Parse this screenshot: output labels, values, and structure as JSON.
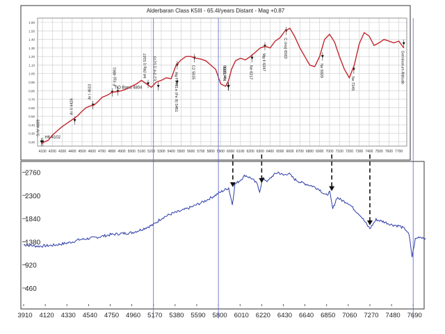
{
  "chart_data": [
    {
      "type": "line",
      "title": "Alderbaran Class K5III - 65.4l/years Distant - Mag +0.87",
      "x": [
        4090,
        4120,
        4160,
        4200,
        4250,
        4300,
        4350,
        4400,
        4450,
        4500,
        4540,
        4580,
        4620,
        4660,
        4700,
        4760,
        4800,
        4860,
        4900,
        4950,
        5000,
        5050,
        5100,
        5150,
        5200,
        5250,
        5300,
        5350,
        5400,
        5450,
        5500,
        5550,
        5600,
        5650,
        5700,
        5750,
        5800,
        5850,
        5900,
        5950,
        5980,
        6010,
        6050,
        6100,
        6150,
        6200,
        6250,
        6300,
        6350,
        6400,
        6450,
        6500,
        6550,
        6600,
        6650,
        6700,
        6750,
        6800,
        6850,
        6900,
        6950,
        7000,
        7050,
        7100,
        7150,
        7200,
        7250,
        7300,
        7350,
        7400,
        7450,
        7500,
        7550,
        7600,
        7650,
        7700,
        7750
      ],
      "y": [
        0.18,
        0.2,
        0.22,
        0.28,
        0.33,
        0.38,
        0.42,
        0.46,
        0.5,
        0.56,
        0.6,
        0.62,
        0.63,
        0.67,
        0.72,
        0.75,
        0.78,
        0.79,
        0.8,
        0.82,
        0.85,
        0.88,
        0.92,
        0.88,
        0.84,
        0.9,
        0.92,
        0.95,
        0.94,
        1.1,
        1.16,
        1.2,
        1.2,
        1.18,
        1.17,
        1.15,
        1.1,
        1.05,
        0.88,
        0.85,
        0.92,
        1.05,
        1.15,
        1.18,
        1.16,
        1.2,
        1.25,
        1.3,
        1.32,
        1.3,
        1.38,
        1.42,
        1.5,
        1.53,
        1.43,
        1.3,
        1.2,
        1.1,
        1.08,
        1.2,
        1.4,
        1.46,
        1.37,
        1.2,
        1.05,
        0.95,
        1.1,
        1.35,
        1.48,
        1.44,
        1.33,
        1.36,
        1.4,
        1.38,
        1.36,
        1.38,
        1.3
      ],
      "xticks": [
        4100,
        4200,
        4300,
        4400,
        4500,
        4600,
        4700,
        4800,
        4900,
        5000,
        5100,
        5200,
        5300,
        5400,
        5500,
        5600,
        5700,
        5800,
        5900,
        6000,
        6100,
        6200,
        6300,
        6400,
        6500,
        6600,
        6700,
        6800,
        6900,
        7000,
        7100,
        7200,
        7300,
        7400,
        7500,
        7600,
        7700
      ],
      "yticks": [
        0.2,
        0.3,
        0.4,
        0.5,
        0.6,
        0.7,
        0.8,
        0.9,
        1.0,
        1.1,
        1.2,
        1.3,
        1.4,
        1.5,
        1.6
      ],
      "xlim": [
        4050,
        7780
      ],
      "ylim": [
        0.15,
        1.65
      ],
      "grid": true,
      "color": "#c0262c",
      "annotations": [
        {
          "text": "S IV 4089",
          "x": 4089,
          "y": 0.2,
          "rotation": "vertical"
        },
        {
          "text": "H6 4102",
          "x": 4102,
          "y": 0.2,
          "rotation": "horizontal"
        },
        {
          "text": "Ar II 4426",
          "x": 4426,
          "y": 0.45,
          "rotation": "vertical"
        },
        {
          "text": "Ar I 4610",
          "x": 4610,
          "y": 0.63,
          "rotation": "vertical"
        },
        {
          "text": "F I(g) 4861",
          "x": 4861,
          "y": 0.79,
          "rotation": "vertical"
        },
        {
          "text": "TiO Band 4804",
          "x": 4804,
          "y": 0.78,
          "rotation": "horizontal"
        },
        {
          "text": "b4 (Mg I) 5167",
          "x": 5167,
          "y": 0.88,
          "rotation": "vertical"
        },
        {
          "text": "E2 (Fe I) 5270",
          "x": 5270,
          "y": 0.85,
          "rotation": "vertical"
        },
        {
          "text": "e (Fe II) 5461",
          "x": 5461,
          "y": 0.9,
          "rotation": "vertical"
        },
        {
          "text": "Hg I 5461",
          "x": 5461,
          "y": 1.1,
          "rotation": "vertical"
        },
        {
          "text": "C2 5635",
          "x": 5635,
          "y": 1.18,
          "rotation": "vertical"
        },
        {
          "text": "Ne 5976",
          "x": 5976,
          "y": 0.85,
          "rotation": "vertical"
        },
        {
          "text": "NeI 5980",
          "x": 5980,
          "y": 0.85,
          "rotation": "vertical"
        },
        {
          "text": "Ne 6217",
          "x": 6217,
          "y": 1.18,
          "rotation": "vertical"
        },
        {
          "text": "Mg II 6347",
          "x": 6347,
          "y": 1.32,
          "rotation": "vertical"
        },
        {
          "text": "C (Ho) 6563",
          "x": 6563,
          "y": 1.5,
          "rotation": "vertical"
        },
        {
          "text": "Ne 6929",
          "x": 6929,
          "y": 1.2,
          "rotation": "vertical"
        },
        {
          "text": "Ne 7245",
          "x": 7245,
          "y": 1.05,
          "rotation": "vertical"
        },
        {
          "text": "Geminorum Altitude",
          "x": 7750,
          "y": 1.35,
          "rotation": "vertical"
        }
      ]
    },
    {
      "type": "line",
      "title": "",
      "xlabel": "",
      "ylabel": "",
      "xticks": [
        3910,
        4120,
        4330,
        4540,
        4750,
        4960,
        5170,
        5380,
        5590,
        5800,
        6010,
        6220,
        6430,
        6640,
        6850,
        7060,
        7270,
        7480,
        7690
      ],
      "yticks": [
        460,
        920,
        1380,
        1840,
        2300,
        2760
      ],
      "xlim": [
        3910,
        7810
      ],
      "ylim": [
        100,
        2920
      ],
      "grid": false,
      "color": "#2a3aa8",
      "x": [
        3910,
        4050,
        4200,
        4350,
        4450,
        4600,
        4750,
        4850,
        4960,
        5050,
        5170,
        5250,
        5350,
        5450,
        5550,
        5650,
        5750,
        5850,
        5900,
        5935,
        5960,
        6010,
        6060,
        6120,
        6180,
        6200,
        6230,
        6280,
        6330,
        6380,
        6430,
        6480,
        6540,
        6600,
        6660,
        6720,
        6780,
        6840,
        6880,
        6910,
        6950,
        7000,
        7060,
        7120,
        7180,
        7240,
        7270,
        7330,
        7400,
        7480,
        7560,
        7620,
        7650,
        7680,
        7710,
        7750,
        7810
      ],
      "y": [
        1320,
        1290,
        1310,
        1360,
        1420,
        1460,
        1520,
        1540,
        1560,
        1620,
        1720,
        1850,
        1940,
        2000,
        2080,
        2170,
        2280,
        2400,
        2450,
        2120,
        2520,
        2600,
        2700,
        2640,
        2520,
        2380,
        2640,
        2580,
        2700,
        2760,
        2700,
        2740,
        2620,
        2560,
        2520,
        2480,
        2420,
        2300,
        2360,
        2030,
        2260,
        2200,
        2150,
        2020,
        1900,
        1720,
        1640,
        1820,
        1780,
        1720,
        1690,
        1620,
        1510,
        1080,
        1430,
        1480,
        1450
      ],
      "markers": [
        {
          "x": 5940,
          "label": ""
        },
        {
          "x": 6220,
          "label": ""
        },
        {
          "x": 6900,
          "label": ""
        },
        {
          "x": 7270,
          "label": ""
        }
      ],
      "vlines": [
        5170,
        5800,
        7690
      ]
    }
  ]
}
